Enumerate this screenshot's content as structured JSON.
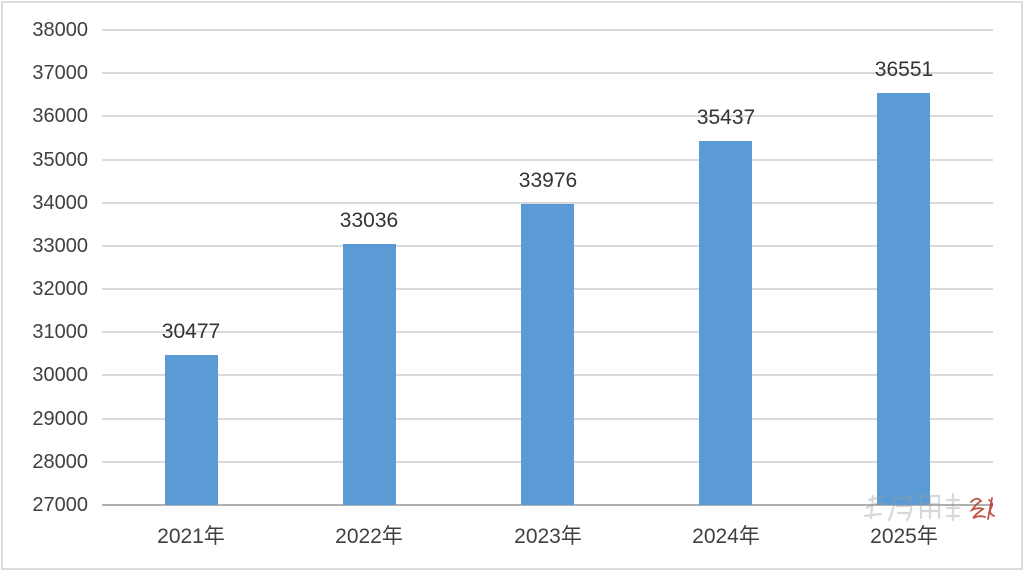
{
  "chart_data": {
    "type": "bar",
    "categories": [
      "2021年",
      "2022年",
      "2023年",
      "2024年",
      "2025年"
    ],
    "values": [
      30477,
      33036,
      33976,
      35437,
      36551
    ],
    "data_labels": [
      "30477",
      "33036",
      "33976",
      "35437",
      "36551"
    ],
    "title": "",
    "xlabel": "",
    "ylabel": "",
    "ylim": [
      27000,
      38000
    ],
    "ytick_step": 1000,
    "ytick_labels": [
      "38000",
      "37000",
      "36000",
      "35000",
      "34000",
      "33000",
      "32000",
      "31000",
      "30000",
      "29000",
      "28000",
      "27000"
    ],
    "grid": true,
    "legend": "none",
    "bar_color": "#5b9bd5",
    "gridline_color": "#dadada",
    "baseline_color": "#b0b0b0",
    "tick_text_color": "#404040",
    "data_label_color": "#333333",
    "background_color": "#ffffff",
    "border_color": "#dcdcdc"
  },
  "watermark": {
    "gray_color": "#9b9b9b",
    "red_color": "#b5342a"
  }
}
